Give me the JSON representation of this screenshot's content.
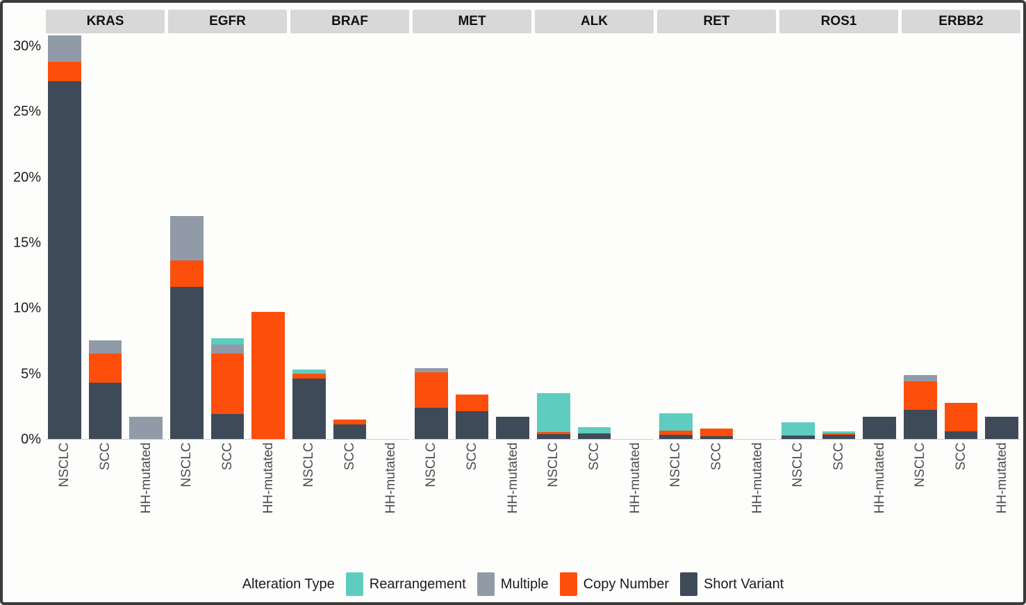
{
  "frame": {
    "border_color": "#3b3b3b",
    "background": "#fdfdfc",
    "facet_header_bg": "#d8d8d8"
  },
  "legend": {
    "title": "Alteration Type",
    "entries": [
      {
        "key": "rearrangement",
        "label": "Rearrangement",
        "color": "#5ecdbf"
      },
      {
        "key": "multiple",
        "label": "Multiple",
        "color": "#909ba7"
      },
      {
        "key": "copy_number",
        "label": "Copy Number",
        "color": "#fd4e0c"
      },
      {
        "key": "short_variant",
        "label": "Short Variant",
        "color": "#3e4a57"
      }
    ]
  },
  "chart_data": {
    "type": "bar",
    "stacked": true,
    "title": "",
    "xlabel": "",
    "ylabel": "",
    "ylim": [
      0,
      31
    ],
    "y_ticks": [
      0,
      5,
      10,
      15,
      20,
      25,
      30
    ],
    "y_tick_suffix": "%",
    "grid": false,
    "legend_position": "bottom",
    "categories": [
      "NSCLC",
      "SCC",
      "HH-mutated"
    ],
    "stack_order_bottom_to_top": [
      "short_variant",
      "copy_number",
      "multiple",
      "rearrangement"
    ],
    "colors": {
      "short_variant": "#3e4a57",
      "copy_number": "#fd4e0c",
      "multiple": "#909ba7",
      "rearrangement": "#5ecdbf"
    },
    "facets": [
      {
        "gene": "KRAS",
        "bars": [
          {
            "category": "NSCLC",
            "segments": {
              "short_variant": 27.3,
              "copy_number": 1.5,
              "multiple": 2.0,
              "rearrangement": 0
            }
          },
          {
            "category": "SCC",
            "segments": {
              "short_variant": 4.3,
              "copy_number": 2.2,
              "multiple": 1.0,
              "rearrangement": 0
            }
          },
          {
            "category": "HH-mutated",
            "segments": {
              "short_variant": 0,
              "copy_number": 0,
              "multiple": 1.7,
              "rearrangement": 0
            }
          }
        ]
      },
      {
        "gene": "EGFR",
        "bars": [
          {
            "category": "NSCLC",
            "segments": {
              "short_variant": 11.6,
              "copy_number": 2.0,
              "multiple": 3.4,
              "rearrangement": 0
            }
          },
          {
            "category": "SCC",
            "segments": {
              "short_variant": 1.9,
              "copy_number": 4.6,
              "multiple": 0.7,
              "rearrangement": 0.5
            }
          },
          {
            "category": "HH-mutated",
            "segments": {
              "short_variant": 0,
              "copy_number": 9.7,
              "multiple": 0,
              "rearrangement": 0
            }
          }
        ]
      },
      {
        "gene": "BRAF",
        "bars": [
          {
            "category": "NSCLC",
            "segments": {
              "short_variant": 4.6,
              "copy_number": 0.4,
              "multiple": 0,
              "rearrangement": 0.3
            }
          },
          {
            "category": "SCC",
            "segments": {
              "short_variant": 1.1,
              "copy_number": 0.4,
              "multiple": 0,
              "rearrangement": 0
            }
          },
          {
            "category": "HH-mutated",
            "segments": {
              "short_variant": 0,
              "copy_number": 0,
              "multiple": 0,
              "rearrangement": 0
            }
          }
        ]
      },
      {
        "gene": "MET",
        "bars": [
          {
            "category": "NSCLC",
            "segments": {
              "short_variant": 2.4,
              "copy_number": 2.7,
              "multiple": 0.3,
              "rearrangement": 0
            }
          },
          {
            "category": "SCC",
            "segments": {
              "short_variant": 2.1,
              "copy_number": 1.3,
              "multiple": 0,
              "rearrangement": 0
            }
          },
          {
            "category": "HH-mutated",
            "segments": {
              "short_variant": 1.7,
              "copy_number": 0,
              "multiple": 0,
              "rearrangement": 0
            }
          }
        ]
      },
      {
        "gene": "ALK",
        "bars": [
          {
            "category": "NSCLC",
            "segments": {
              "short_variant": 0.35,
              "copy_number": 0.2,
              "multiple": 0,
              "rearrangement": 2.95
            }
          },
          {
            "category": "SCC",
            "segments": {
              "short_variant": 0.4,
              "copy_number": 0,
              "multiple": 0,
              "rearrangement": 0.5
            }
          },
          {
            "category": "HH-mutated",
            "segments": {
              "short_variant": 0,
              "copy_number": 0,
              "multiple": 0,
              "rearrangement": 0
            }
          }
        ]
      },
      {
        "gene": "RET",
        "bars": [
          {
            "category": "NSCLC",
            "segments": {
              "short_variant": 0.3,
              "copy_number": 0.35,
              "multiple": 0,
              "rearrangement": 1.3
            }
          },
          {
            "category": "SCC",
            "segments": {
              "short_variant": 0.2,
              "copy_number": 0.6,
              "multiple": 0,
              "rearrangement": 0
            }
          },
          {
            "category": "HH-mutated",
            "segments": {
              "short_variant": 0,
              "copy_number": 0,
              "multiple": 0,
              "rearrangement": 0
            }
          }
        ]
      },
      {
        "gene": "ROS1",
        "bars": [
          {
            "category": "NSCLC",
            "segments": {
              "short_variant": 0.25,
              "copy_number": 0,
              "multiple": 0,
              "rearrangement": 1.0
            }
          },
          {
            "category": "SCC",
            "segments": {
              "short_variant": 0.3,
              "copy_number": 0.15,
              "multiple": 0,
              "rearrangement": 0.15
            }
          },
          {
            "category": "HH-mutated",
            "segments": {
              "short_variant": 1.7,
              "copy_number": 0,
              "multiple": 0,
              "rearrangement": 0
            }
          }
        ]
      },
      {
        "gene": "ERBB2",
        "bars": [
          {
            "category": "NSCLC",
            "segments": {
              "short_variant": 2.2,
              "copy_number": 2.2,
              "multiple": 0.5,
              "rearrangement": 0
            }
          },
          {
            "category": "SCC",
            "segments": {
              "short_variant": 0.6,
              "copy_number": 2.15,
              "multiple": 0,
              "rearrangement": 0
            }
          },
          {
            "category": "HH-mutated",
            "segments": {
              "short_variant": 1.7,
              "copy_number": 0,
              "multiple": 0,
              "rearrangement": 0
            }
          }
        ]
      }
    ]
  }
}
